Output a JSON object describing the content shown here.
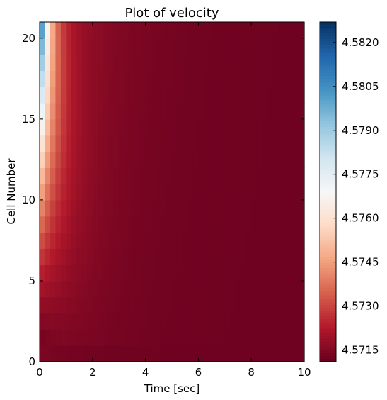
{
  "chart_data": {
    "type": "heatmap",
    "title": "Plot of velocity",
    "xlabel": "Time [sec]",
    "ylabel": "Cell Number",
    "xlim": [
      0,
      10
    ],
    "ylim": [
      0,
      21
    ],
    "x_ticks": [
      "0",
      "2",
      "4",
      "6",
      "8",
      "10"
    ],
    "y_ticks": [
      "0",
      "5",
      "10",
      "15",
      "20"
    ],
    "colormap": "RdBu",
    "color_range": [
      4.5711,
      4.5827
    ],
    "colorbar_ticks": [
      "4.5715",
      "4.5730",
      "4.5745",
      "4.5760",
      "4.5775",
      "4.5790",
      "4.5805",
      "4.5820"
    ],
    "cells": 21,
    "time_step": 0.2,
    "baseline_velocity": 4.5712,
    "top_cell_initial_velocity": 4.5826,
    "grid": false
  }
}
